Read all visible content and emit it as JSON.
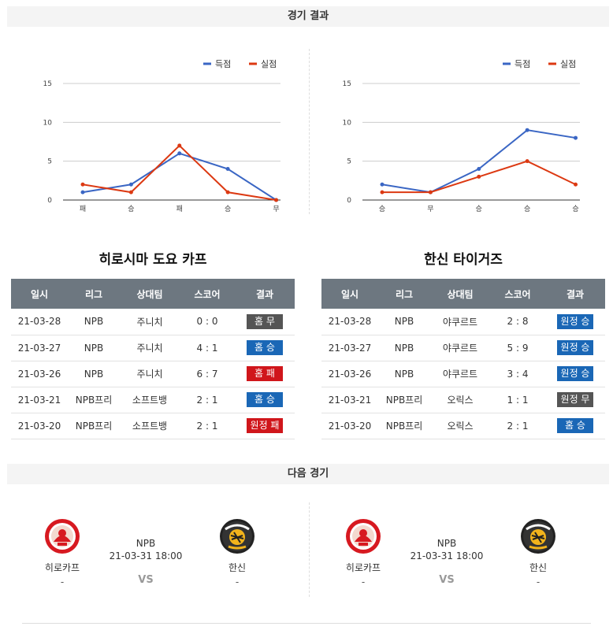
{
  "sections": {
    "results_title": "경기 결과",
    "next_title": "다음 경기"
  },
  "chart_data": [
    {
      "type": "line",
      "categories": [
        "패",
        "승",
        "패",
        "승",
        "무"
      ],
      "series": [
        {
          "name": "득점",
          "values": [
            1,
            2,
            6,
            4,
            0
          ],
          "color": "#3a66c4"
        },
        {
          "name": "실점",
          "values": [
            2,
            1,
            7,
            1,
            0
          ],
          "color": "#dc3912"
        }
      ],
      "ylim": [
        0,
        15
      ],
      "yticks": [
        0,
        5,
        10,
        15
      ],
      "grid": true,
      "legend": "top-right"
    },
    {
      "type": "line",
      "categories": [
        "승",
        "무",
        "승",
        "승",
        "승"
      ],
      "series": [
        {
          "name": "득점",
          "values": [
            2,
            1,
            4,
            9,
            8
          ],
          "color": "#3a66c4"
        },
        {
          "name": "실점",
          "values": [
            1,
            1,
            3,
            5,
            2
          ],
          "color": "#dc3912"
        }
      ],
      "ylim": [
        0,
        15
      ],
      "yticks": [
        0,
        5,
        10,
        15
      ],
      "grid": true,
      "legend": "top-right"
    }
  ],
  "teams": {
    "left": {
      "title": "히로시마 도요 카프"
    },
    "right": {
      "title": "한신 타이거즈"
    }
  },
  "table_headers": [
    "일시",
    "리그",
    "상대팀",
    "스코어",
    "결과"
  ],
  "tables": {
    "left": [
      {
        "date": "21-03-28",
        "league": "NPB",
        "opponent": "주니치",
        "score": "0 : 0",
        "result": "홈 무",
        "type": "draw"
      },
      {
        "date": "21-03-27",
        "league": "NPB",
        "opponent": "주니치",
        "score": "4 : 1",
        "result": "홈 승",
        "type": "win"
      },
      {
        "date": "21-03-26",
        "league": "NPB",
        "opponent": "주니치",
        "score": "6 : 7",
        "result": "홈 패",
        "type": "lose"
      },
      {
        "date": "21-03-21",
        "league": "NPB프리",
        "opponent": "소프트뱅",
        "score": "2 : 1",
        "result": "홈 승",
        "type": "win"
      },
      {
        "date": "21-03-20",
        "league": "NPB프리",
        "opponent": "소프트뱅",
        "score": "2 : 1",
        "result": "원정 패",
        "type": "lose"
      }
    ],
    "right": [
      {
        "date": "21-03-28",
        "league": "NPB",
        "opponent": "야쿠르트",
        "score": "2 : 8",
        "result": "원정 승",
        "type": "win"
      },
      {
        "date": "21-03-27",
        "league": "NPB",
        "opponent": "야쿠르트",
        "score": "5 : 9",
        "result": "원정 승",
        "type": "win"
      },
      {
        "date": "21-03-26",
        "league": "NPB",
        "opponent": "야쿠르트",
        "score": "3 : 4",
        "result": "원정 승",
        "type": "win"
      },
      {
        "date": "21-03-21",
        "league": "NPB프리",
        "opponent": "오릭스",
        "score": "1 : 1",
        "result": "원정 무",
        "type": "draw"
      },
      {
        "date": "21-03-20",
        "league": "NPB프리",
        "opponent": "오릭스",
        "score": "2 : 1",
        "result": "홈 승",
        "type": "win"
      }
    ]
  },
  "next_matches": [
    {
      "home_name": "히로카프",
      "home_score": "-",
      "away_name": "한신",
      "away_score": "-",
      "league": "NPB",
      "datetime": "21-03-31 18:00",
      "vs": "VS"
    },
    {
      "home_name": "히로카프",
      "home_score": "-",
      "away_name": "한신",
      "away_score": "-",
      "league": "NPB",
      "datetime": "21-03-31 18:00",
      "vs": "VS"
    }
  ],
  "icons": {
    "home_logo": "carp-logo",
    "away_logo": "tigers-logo"
  }
}
